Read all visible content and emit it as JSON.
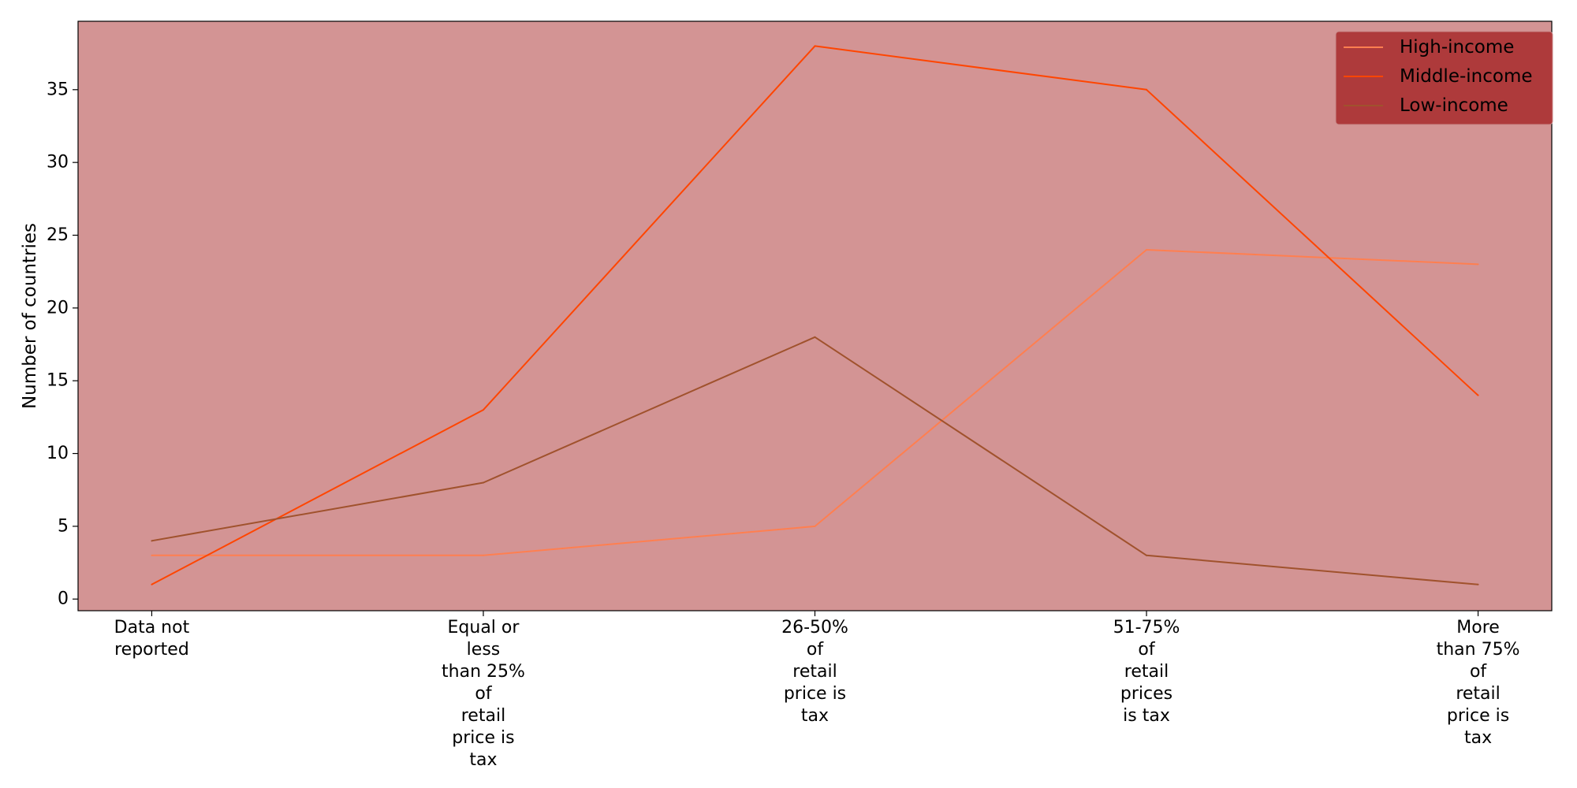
{
  "colors": {
    "plot_background": "#d39494",
    "legend_background": "#ae3a3b",
    "axis": "#000000"
  },
  "chart_data": {
    "type": "line",
    "ylabel": "Number of countries",
    "xlabel": "",
    "ylim": [
      -0.8,
      39.7
    ],
    "yticks": [
      0,
      5,
      10,
      15,
      20,
      25,
      30,
      35
    ],
    "grid": false,
    "legend_placement": "top-right",
    "categories": [
      "Data not\nreported",
      "Equal or\nless\nthan 25%\nof\nretail\nprice is\ntax",
      "26-50%\nof\nretail\nprice is\ntax",
      "51-75%\nof\nretail\nprices\nis tax",
      "More\nthan 75%\nof\nretail\nprice is\ntax"
    ],
    "series": [
      {
        "name": "High-income",
        "color": "#ff7f50",
        "values": [
          3,
          3,
          5,
          24,
          23
        ]
      },
      {
        "name": "Middle-income",
        "color": "#ff4500",
        "values": [
          1,
          13,
          38,
          35,
          14
        ]
      },
      {
        "name": "Low-income",
        "color": "#a0522d",
        "values": [
          4,
          8,
          18,
          3,
          1
        ]
      }
    ]
  }
}
